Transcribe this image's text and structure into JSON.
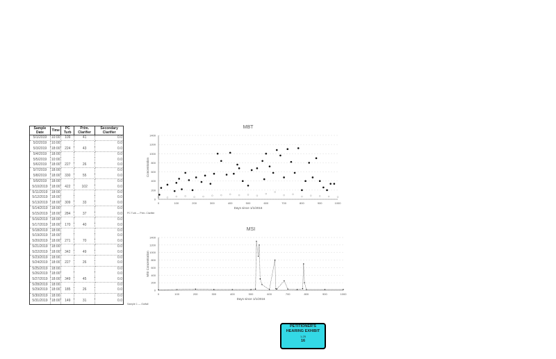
{
  "table": {
    "headers": [
      "Sample Date",
      "Time",
      "PC Turb",
      "Prim. Clarifier",
      "Secondary Clarifier"
    ],
    "rows": [
      [
        "5/1/2019",
        "10:00",
        "109",
        "41",
        "0.0"
      ],
      [
        "5/2/2019",
        "10:00",
        "",
        "",
        "0.0"
      ],
      [
        "5/3/2019",
        "18:00",
        "224",
        "43",
        "0.0"
      ],
      [
        "5/4/2019",
        "18:00",
        "",
        "",
        "0.0"
      ],
      [
        "5/5/2019",
        "10:00",
        "",
        "",
        "0.0"
      ],
      [
        "5/6/2019",
        "18:00",
        "227",
        "26",
        "0.0"
      ],
      [
        "5/7/2019",
        "18:00",
        "",
        "",
        "0.0"
      ],
      [
        "5/8/2019",
        "18:00",
        "330",
        "55",
        "0.0"
      ],
      [
        "5/9/2019",
        "18:00",
        "",
        "",
        "0.0"
      ],
      [
        "5/10/2019",
        "18:00",
        "422",
        "102",
        "0.0"
      ],
      [
        "5/11/2019",
        "18:00",
        "",
        "",
        "0.0"
      ],
      [
        "5/12/2019",
        "18:00",
        "",
        "",
        "0.0"
      ],
      [
        "5/13/2019",
        "18:00",
        "309",
        "33",
        "0.0"
      ],
      [
        "5/14/2019",
        "18:00",
        "",
        "",
        "0.0"
      ],
      [
        "5/15/2019",
        "18:00",
        "284",
        "37",
        "0.0"
      ],
      [
        "5/16/2019",
        "18:00",
        "",
        "",
        "0.0"
      ],
      [
        "5/17/2019",
        "18:00",
        "170",
        "40",
        "0.0"
      ],
      [
        "5/18/2019",
        "18:00",
        "",
        "",
        "0.0"
      ],
      [
        "5/19/2019",
        "18:00",
        "",
        "",
        "0.0"
      ],
      [
        "5/20/2019",
        "18:00",
        "271",
        "70",
        "0.0"
      ],
      [
        "5/21/2019",
        "18:00",
        "",
        "",
        "0.0"
      ],
      [
        "5/22/2019",
        "18:00",
        "342",
        "49",
        "0.0"
      ],
      [
        "5/23/2019",
        "18:00",
        "",
        "",
        "0.0"
      ],
      [
        "5/24/2019",
        "18:00",
        "227",
        "26",
        "0.0"
      ],
      [
        "5/25/2019",
        "18:00",
        "",
        "",
        "0.0"
      ],
      [
        "5/26/2019",
        "18:00",
        "",
        "",
        "0.0"
      ],
      [
        "5/27/2019",
        "18:00",
        "349",
        "45",
        "0.0"
      ],
      [
        "5/28/2019",
        "18:00",
        "",
        "",
        "0.0"
      ],
      [
        "5/29/2019",
        "18:00",
        "185",
        "26",
        "0.0"
      ],
      [
        "5/30/2019",
        "18:00",
        "",
        "",
        "0.0"
      ],
      [
        "5/31/2019",
        "18:00",
        "149",
        "31",
        "0.0"
      ]
    ]
  },
  "chart_data": [
    {
      "type": "scatter",
      "title": "MBT",
      "xlabel": "Days since 1/1/2016",
      "ylabel": "Concentration",
      "xlim": [
        0,
        1000
      ],
      "ylim": [
        0,
        1400
      ],
      "xticks": [
        "0",
        "100",
        "200",
        "300",
        "400",
        "500",
        "600",
        "700",
        "800",
        "900",
        "1000"
      ],
      "yticks": [
        "0",
        "200",
        "400",
        "600",
        "800",
        "1000",
        "1200",
        "1400"
      ],
      "legend": "PC Turb — Prim. Clarifier",
      "legend_placement": "bottom-left",
      "series": [
        {
          "name": "PC Turb",
          "x": [
            5,
            15,
            50,
            90,
            100,
            115,
            130,
            150,
            170,
            190,
            210,
            240,
            260,
            290,
            310,
            330,
            350,
            380,
            400,
            420,
            440,
            450,
            470,
            500,
            520,
            550,
            580,
            590,
            600,
            620,
            640,
            660,
            680,
            700,
            720,
            740,
            760,
            780,
            800,
            820,
            840,
            860,
            880,
            900,
            920,
            940,
            960,
            980
          ],
          "y": [
            100,
            250,
            320,
            180,
            360,
            450,
            220,
            580,
            420,
            200,
            480,
            380,
            520,
            340,
            560,
            1000,
            840,
            540,
            1020,
            560,
            760,
            680,
            400,
            300,
            640,
            680,
            840,
            440,
            1000,
            720,
            580,
            1080,
            960,
            480,
            1100,
            820,
            580,
            1120,
            200,
            400,
            800,
            480,
            900,
            400,
            260,
            200,
            340,
            340
          ]
        },
        {
          "name": "Prim. Clarifier",
          "x": [
            0,
            50,
            100,
            150,
            200,
            250,
            300,
            350,
            400,
            450,
            500,
            550,
            600,
            650,
            700,
            750,
            800,
            850,
            900,
            950,
            1000
          ],
          "y": [
            50,
            40,
            60,
            70,
            50,
            60,
            80,
            90,
            110,
            90,
            100,
            80,
            120,
            160,
            90,
            110,
            60,
            80,
            70,
            60,
            50
          ]
        }
      ]
    },
    {
      "type": "line",
      "title": "MSI",
      "xlabel": "Days since 1/1/2016",
      "ylabel": "MSI Concentration",
      "xlim": [
        0,
        1000
      ],
      "ylim": [
        0,
        1400
      ],
      "xticks": [
        "0",
        "100",
        "200",
        "300",
        "400",
        "500",
        "600",
        "700",
        "800",
        "900",
        "1000"
      ],
      "yticks": [
        "0",
        "200",
        "400",
        "600",
        "800",
        "1000",
        "1200",
        "1400"
      ],
      "legend": "Sample 1 — Outfall",
      "legend_placement": "bottom-left",
      "series": [
        {
          "name": "Sample 1",
          "x": [
            0,
            100,
            200,
            300,
            400,
            500,
            525,
            530,
            540,
            545,
            550,
            560,
            600,
            630,
            635,
            640,
            680,
            700,
            750,
            780,
            785,
            790,
            800,
            900,
            1000
          ],
          "y": [
            10,
            20,
            30,
            20,
            20,
            20,
            30,
            1300,
            900,
            1200,
            300,
            150,
            20,
            800,
            40,
            30,
            250,
            30,
            20,
            40,
            700,
            200,
            20,
            20,
            20
          ]
        }
      ]
    }
  ],
  "badge": {
    "line1": "PETITIONER'S",
    "line2": "HEARING EXHIBIT",
    "line3": "1-25",
    "number": "16",
    "color": "#33d9e6"
  }
}
